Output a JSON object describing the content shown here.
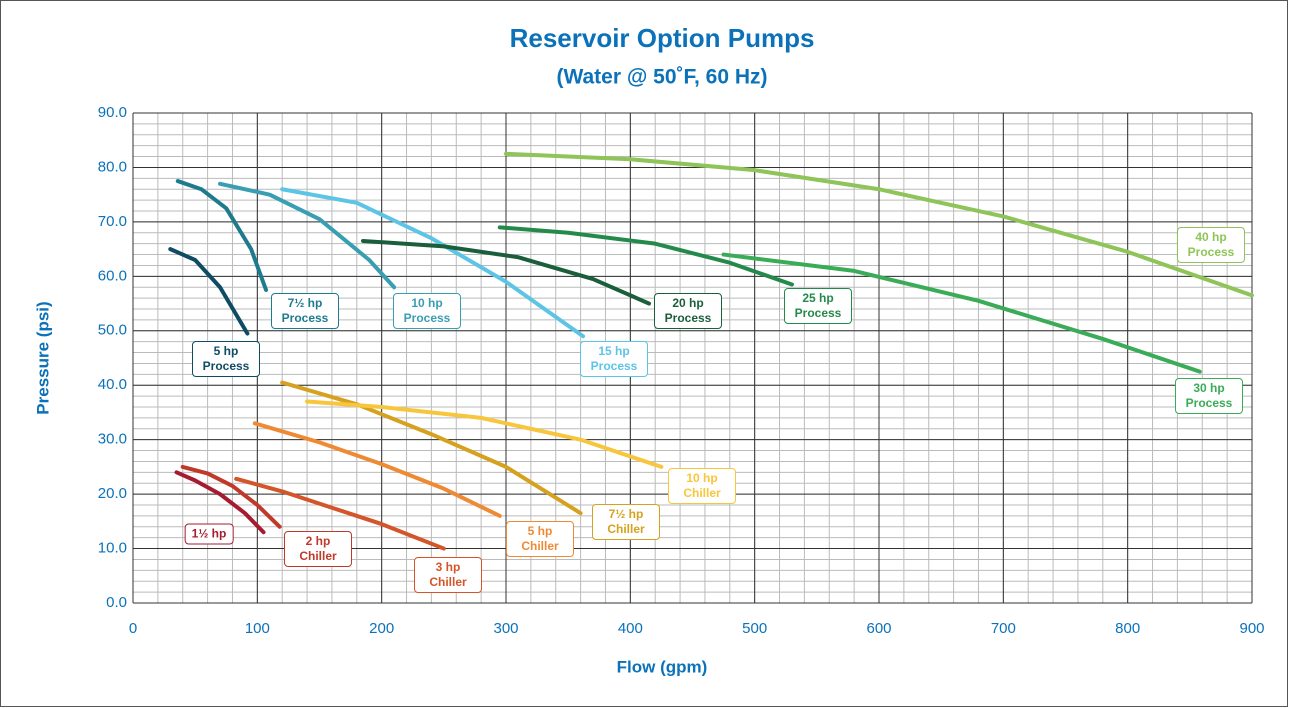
{
  "chart_data": {
    "type": "line",
    "title": "Reservoir Option Pumps",
    "subtitle": "(Water @ 50˚F, 60 Hz)",
    "x_label": "Flow (gpm)",
    "y_label": "Pressure (psi)",
    "xlim": [
      0,
      900
    ],
    "ylim": [
      0,
      90
    ],
    "xticks": [
      0,
      100,
      200,
      300,
      400,
      500,
      600,
      700,
      800,
      900
    ],
    "yticks": [
      {
        "value": 0,
        "label": "0.0"
      },
      {
        "value": 10,
        "label": "10.0"
      },
      {
        "value": 20,
        "label": "20.0"
      },
      {
        "value": 30,
        "label": "30.0"
      },
      {
        "value": 40,
        "label": "40.0"
      },
      {
        "value": 50,
        "label": "50.0"
      },
      {
        "value": 60,
        "label": "60.0"
      },
      {
        "value": 70,
        "label": "70.0"
      },
      {
        "value": 80,
        "label": "80.0"
      },
      {
        "value": 90,
        "label": "90.0"
      }
    ],
    "grid": true,
    "minor_grid": {
      "x": 20,
      "y": 2
    },
    "series": [
      {
        "name": "1½ hp",
        "color": "#a51c30",
        "x": [
          35,
          50,
          70,
          90,
          105
        ],
        "values": [
          24,
          22.5,
          20,
          16.5,
          13
        ]
      },
      {
        "name": "2 hp Chiller",
        "color": "#bf3a2b",
        "x": [
          40,
          60,
          80,
          100,
          118
        ],
        "values": [
          25,
          23.8,
          21.5,
          18,
          14
        ]
      },
      {
        "name": "3 hp Chiller",
        "color": "#d4552a",
        "x": [
          83,
          120,
          160,
          200,
          250
        ],
        "values": [
          22.8,
          20.5,
          17.5,
          14.5,
          10
        ]
      },
      {
        "name": "5 hp Chiller",
        "color": "#ef8a34",
        "x": [
          98,
          150,
          200,
          250,
          295
        ],
        "values": [
          33,
          29.5,
          25.5,
          21,
          16
        ]
      },
      {
        "name": "7½ hp Chiller",
        "color": "#d6a11e",
        "x": [
          120,
          180,
          240,
          300,
          360
        ],
        "values": [
          40.5,
          36.5,
          31,
          25,
          16.5
        ]
      },
      {
        "name": "10 hp Chiller",
        "color": "#f8c63c",
        "x": [
          140,
          200,
          280,
          360,
          425
        ],
        "values": [
          37,
          36,
          34,
          30,
          25
        ]
      },
      {
        "name": "5 hp Process",
        "color": "#0f4c63",
        "x": [
          30,
          50,
          70,
          92
        ],
        "values": [
          65,
          63,
          58,
          49.5
        ]
      },
      {
        "name": "7½ hp Process",
        "color": "#1e7b8d",
        "x": [
          36,
          55,
          75,
          95,
          107
        ],
        "values": [
          77.5,
          76,
          72.5,
          65,
          57.5
        ]
      },
      {
        "name": "10 hp Process",
        "color": "#3a9eb3",
        "x": [
          70,
          110,
          150,
          190,
          210
        ],
        "values": [
          77,
          75,
          70.5,
          63,
          58
        ]
      },
      {
        "name": "15 hp Process",
        "color": "#5cc4e4",
        "x": [
          120,
          180,
          240,
          300,
          362
        ],
        "values": [
          76,
          73.5,
          67,
          59,
          49
        ]
      },
      {
        "name": "20 hp Process",
        "color": "#1a5e3b",
        "x": [
          185,
          250,
          310,
          370,
          415
        ],
        "values": [
          66.5,
          65.5,
          63.5,
          59.5,
          55
        ]
      },
      {
        "name": "25 hp Process",
        "color": "#238a4b",
        "x": [
          295,
          350,
          420,
          480,
          530
        ],
        "values": [
          69,
          68,
          66,
          62.5,
          58.5
        ]
      },
      {
        "name": "30 hp Process",
        "color": "#3aab57",
        "x": [
          475,
          580,
          680,
          780,
          858
        ],
        "values": [
          64,
          61,
          55.5,
          48.5,
          42.5
        ]
      },
      {
        "name": "40 hp Process",
        "color": "#8ec458",
        "x": [
          300,
          400,
          500,
          600,
          700,
          800,
          900
        ],
        "values": [
          82.5,
          81.5,
          79.5,
          76,
          71,
          64.5,
          56.5
        ]
      }
    ]
  }
}
